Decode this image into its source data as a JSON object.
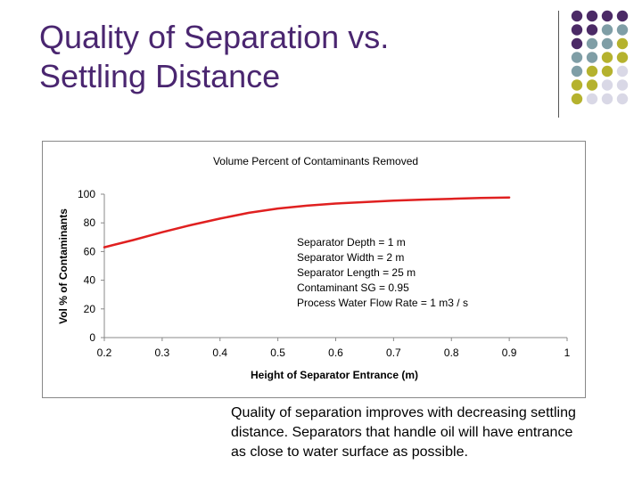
{
  "slide": {
    "title_lines": [
      "Quality of Separation vs.",
      "Settling Distance"
    ],
    "caption_lines": [
      "Quality of separation improves with decreasing settling",
      "distance.  Separators that handle oil will have entrance",
      "as close to water surface as possible."
    ]
  },
  "decor": {
    "dot_colors": {
      "purple": "#4b2a66",
      "teal": "#7f9ea6",
      "olive": "#b5b22e",
      "lavender": "#d9d8e6"
    },
    "dot_grid": [
      [
        "purple",
        "purple",
        "purple",
        "purple"
      ],
      [
        "purple",
        "purple",
        "teal",
        "teal"
      ],
      [
        "purple",
        "teal",
        "teal",
        "olive"
      ],
      [
        "teal",
        "teal",
        "olive",
        "olive"
      ],
      [
        "teal",
        "olive",
        "olive",
        "lavender"
      ],
      [
        "olive",
        "olive",
        "lavender",
        "lavender"
      ],
      [
        "olive",
        "lavender",
        "lavender",
        "lavender"
      ]
    ]
  },
  "chart_data": {
    "type": "line",
    "title": "Volume Percent of Contaminants Removed",
    "xlabel": "Height of Separator Entrance (m)",
    "ylabel": "Vol % of Contaminants",
    "xlim": [
      0.2,
      1
    ],
    "ylim": [
      0,
      100
    ],
    "x_ticks": [
      "0.2",
      "0.3",
      "0.4",
      "0.5",
      "0.6",
      "0.7",
      "0.8",
      "0.9",
      "1"
    ],
    "y_ticks": [
      "0",
      "20",
      "40",
      "60",
      "80",
      "100"
    ],
    "grid": false,
    "line_color": "#e02020",
    "series": [
      {
        "x": [
          0.2,
          0.25,
          0.3,
          0.35,
          0.4,
          0.45,
          0.5,
          0.55,
          0.6,
          0.65,
          0.7,
          0.75,
          0.8,
          0.85,
          0.9
        ],
        "values": [
          63,
          68,
          73.5,
          78.5,
          83,
          87,
          90,
          92,
          93.5,
          94.5,
          95.5,
          96.2,
          96.8,
          97.3,
          97.7
        ]
      }
    ],
    "annotation_lines": [
      "Separator Depth = 1 m",
      "Separator Width = 2 m",
      "Separator Length = 25 m",
      "Contaminant SG = 0.95",
      "Process Water Flow Rate = 1 m3 / s"
    ]
  }
}
